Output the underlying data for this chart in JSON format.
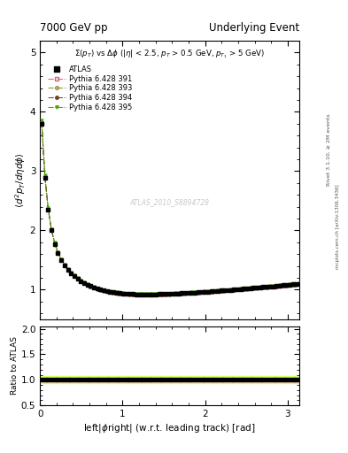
{
  "title_left": "7000 GeV pp",
  "title_right": "Underlying Event",
  "ylabel_main": "$\\langle d^2 p_T/d\\eta d\\phi\\rangle$",
  "ylabel_ratio": "Ratio to ATLAS",
  "xlabel": "left|$\\phi$right| (w.r.t. leading track) [rad]",
  "annotation": "$\\Sigma(p_T)$ vs $\\Delta\\phi$ (|$\\eta$| < 2.5, $p_T$ > 0.5 GeV, $p_{T_1}$ > 5 GeV)",
  "watermark": "ATLAS_2010_S8894728",
  "rivet_label": "Rivet 3.1.10, ≥ 2M events",
  "arxiv_label": "mcplots.cern.ch [arXiv:1306.3436]",
  "ylim_main": [
    0.5,
    5.2
  ],
  "ylim_ratio": [
    0.5,
    2.05
  ],
  "xlim": [
    0.0,
    3.14159
  ],
  "yticks_main": [
    1,
    2,
    3,
    4,
    5
  ],
  "yticks_ratio": [
    0.5,
    1.0,
    1.5,
    2.0
  ],
  "xticks": [
    0,
    1,
    2,
    3
  ],
  "series": {
    "ATLAS": {
      "color": "#000000",
      "marker": "s",
      "markersize": 3.5,
      "label": "ATLAS"
    },
    "391": {
      "color": "#cc6677",
      "linestyle": "-.",
      "marker": "s",
      "markerfacecolor": "none",
      "markersize": 2.5,
      "label": "Pythia 6.428 391"
    },
    "393": {
      "color": "#888822",
      "linestyle": "-.",
      "marker": "o",
      "markerfacecolor": "none",
      "markersize": 2.5,
      "label": "Pythia 6.428 393"
    },
    "394": {
      "color": "#664422",
      "linestyle": "-.",
      "marker": "o",
      "markerfacecolor": "#664422",
      "markersize": 2.5,
      "label": "Pythia 6.428 394"
    },
    "395": {
      "color": "#44aa00",
      "linestyle": "-.",
      "marker": "v",
      "markerfacecolor": "#44aa00",
      "markersize": 2.5,
      "label": "Pythia 6.428 395"
    }
  },
  "band_395_color": "#ccff44",
  "band_391_color": "#ffcccc",
  "background_color": "#ffffff"
}
